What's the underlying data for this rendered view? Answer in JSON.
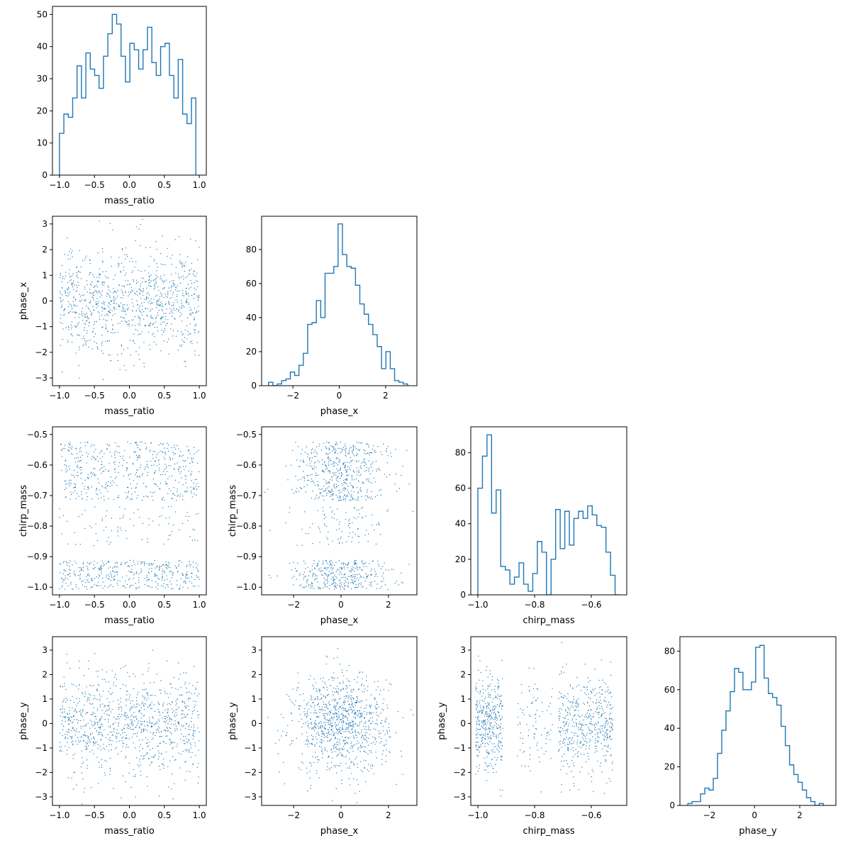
{
  "colors": {
    "series": "#1f77b4",
    "axes": "#000000",
    "background": "#ffffff"
  },
  "chart_data": [
    {
      "panel": "hist-mass_ratio",
      "type": "bar",
      "style": "step-histogram",
      "xlabel": "mass_ratio",
      "ylabel": "",
      "xlim": [
        -1.1,
        1.1
      ],
      "ylim": [
        0,
        52.5
      ],
      "xticks": [
        -1.0,
        -0.5,
        0.0,
        0.5,
        1.0
      ],
      "xtick_labels": [
        "−1.0",
        "−0.5",
        "0.0",
        "0.5",
        "1.0"
      ],
      "yticks": [
        0,
        10,
        20,
        30,
        40,
        50
      ],
      "ytick_labels": [
        "0",
        "10",
        "20",
        "30",
        "40",
        "50"
      ],
      "bin_edges": [
        -1.0,
        0.95
      ],
      "values": [
        13,
        19,
        18,
        24,
        34,
        24,
        38,
        33,
        31,
        27,
        37,
        44,
        50,
        47,
        37,
        29,
        41,
        39,
        33,
        39,
        46,
        35,
        31,
        40,
        41,
        31,
        24,
        36,
        19,
        16,
        24
      ]
    },
    {
      "panel": "hist-phase_x",
      "type": "bar",
      "style": "step-histogram",
      "xlabel": "phase_x",
      "ylabel": "",
      "xlim": [
        -3.35,
        3.35
      ],
      "ylim": [
        0,
        99.5
      ],
      "xticks": [
        -2,
        0,
        2
      ],
      "xtick_labels": [
        "−2",
        "0",
        "2"
      ],
      "yticks": [
        0,
        20,
        40,
        60,
        80
      ],
      "ytick_labels": [
        "0",
        "20",
        "40",
        "60",
        "80"
      ],
      "bin_edges": [
        -3.05,
        2.95
      ],
      "values": [
        2,
        0,
        1,
        3,
        4,
        8,
        6,
        12,
        19,
        36,
        37,
        50,
        40,
        66,
        66,
        70,
        95,
        77,
        70,
        69,
        59,
        48,
        42,
        36,
        30,
        23,
        10,
        20,
        10,
        3,
        2,
        1
      ]
    },
    {
      "panel": "hist-chirp_mass",
      "type": "bar",
      "style": "step-histogram",
      "xlabel": "chirp_mass",
      "ylabel": "",
      "xlim": [
        -1.025,
        -0.475
      ],
      "ylim": [
        0,
        94.5
      ],
      "xticks": [
        -1.0,
        -0.8,
        -0.6
      ],
      "xtick_labels": [
        "−1.0",
        "−0.8",
        "−0.6"
      ],
      "yticks": [
        0,
        20,
        40,
        60,
        80
      ],
      "ytick_labels": [
        "0",
        "20",
        "40",
        "60",
        "80"
      ],
      "bin_edges": [
        -1.0,
        -0.5
      ],
      "values": [
        60,
        78,
        90,
        46,
        59,
        16,
        14,
        6,
        10,
        18,
        6,
        2,
        12,
        30,
        24,
        0,
        20,
        48,
        26,
        47,
        28,
        43,
        47,
        43,
        50,
        45,
        39,
        38,
        24,
        11,
        0
      ]
    },
    {
      "panel": "hist-phase_y",
      "type": "bar",
      "style": "step-histogram",
      "xlabel": "phase_y",
      "ylabel": "",
      "xlim": [
        -3.3,
        3.6
      ],
      "ylim": [
        0,
        87.5
      ],
      "xticks": [
        -2,
        0,
        2
      ],
      "xtick_labels": [
        "−2",
        "0",
        "2"
      ],
      "yticks": [
        0,
        20,
        40,
        60,
        80
      ],
      "ytick_labels": [
        "0",
        "20",
        "40",
        "60",
        "80"
      ],
      "bin_edges": [
        -2.95,
        3.05
      ],
      "values": [
        1,
        2,
        2,
        6,
        9,
        8,
        14,
        27,
        39,
        49,
        59,
        71,
        69,
        60,
        60,
        64,
        82,
        83,
        66,
        58,
        56,
        52,
        41,
        31,
        21,
        16,
        12,
        8,
        4,
        2,
        0,
        1
      ]
    },
    {
      "panel": "scatter-mass_ratio-phase_x",
      "type": "scatter",
      "xlabel": "mass_ratio",
      "ylabel": "phase_x",
      "xlim": [
        -1.1,
        1.1
      ],
      "ylim": [
        -3.3,
        3.3
      ],
      "xticks": [
        -1.0,
        -0.5,
        0.0,
        0.5,
        1.0
      ],
      "xtick_labels": [
        "−1.0",
        "−0.5",
        "0.0",
        "0.5",
        "1.0"
      ],
      "yticks": [
        -3,
        -2,
        -1,
        0,
        1,
        2,
        3
      ],
      "ytick_labels": [
        "−3",
        "−2",
        "−1",
        "0",
        "1",
        "2",
        "3"
      ],
      "x_range": [
        -1.0,
        1.0
      ],
      "x_distribution": "uniform",
      "y_mean": 0.0,
      "y_std": 1.0,
      "n_points": 1000
    },
    {
      "panel": "scatter-mass_ratio-chirp_mass",
      "type": "scatter",
      "xlabel": "mass_ratio",
      "ylabel": "chirp_mass",
      "xlim": [
        -1.1,
        1.1
      ],
      "ylim": [
        -1.025,
        -0.475
      ],
      "xticks": [
        -1.0,
        -0.5,
        0.0,
        0.5,
        1.0
      ],
      "xtick_labels": [
        "−1.0",
        "−0.5",
        "0.0",
        "0.5",
        "1.0"
      ],
      "yticks": [
        -1.0,
        -0.9,
        -0.8,
        -0.7,
        -0.6,
        -0.5
      ],
      "ytick_labels": [
        "−1.0",
        "−0.9",
        "−0.8",
        "−0.7",
        "−0.6",
        "−0.5"
      ],
      "x_range": [
        -1.0,
        1.0
      ],
      "x_distribution": "uniform",
      "y_clusters": [
        {
          "center": -0.96,
          "spread": 0.03,
          "weight": 0.38
        },
        {
          "center": -0.62,
          "spread": 0.06,
          "weight": 0.52
        },
        {
          "center": -0.8,
          "spread": 0.04,
          "weight": 0.1
        }
      ],
      "n_points": 1000
    },
    {
      "panel": "scatter-phase_x-chirp_mass",
      "type": "scatter",
      "xlabel": "phase_x",
      "ylabel": "chirp_mass",
      "xlim": [
        -3.35,
        3.2
      ],
      "ylim": [
        -1.025,
        -0.475
      ],
      "xticks": [
        -2,
        0,
        2
      ],
      "xtick_labels": [
        "−2",
        "0",
        "2"
      ],
      "yticks": [
        -1.0,
        -0.9,
        -0.8,
        -0.7,
        -0.6,
        -0.5
      ],
      "ytick_labels": [
        "−1.0",
        "−0.9",
        "−0.8",
        "−0.7",
        "−0.6",
        "−0.5"
      ],
      "x_mean": 0.0,
      "x_std": 1.0,
      "y_clusters": [
        {
          "center": -0.96,
          "spread": 0.03,
          "weight": 0.38
        },
        {
          "center": -0.62,
          "spread": 0.06,
          "weight": 0.52
        },
        {
          "center": -0.8,
          "spread": 0.04,
          "weight": 0.1
        }
      ],
      "n_points": 1000
    },
    {
      "panel": "scatter-mass_ratio-phase_y",
      "type": "scatter",
      "xlabel": "mass_ratio",
      "ylabel": "phase_y",
      "xlim": [
        -1.1,
        1.1
      ],
      "ylim": [
        -3.35,
        3.55
      ],
      "xticks": [
        -1.0,
        -0.5,
        0.0,
        0.5,
        1.0
      ],
      "xtick_labels": [
        "−1.0",
        "−0.5",
        "0.0",
        "0.5",
        "1.0"
      ],
      "yticks": [
        -3,
        -2,
        -1,
        0,
        1,
        2,
        3
      ],
      "ytick_labels": [
        "−3",
        "−2",
        "−1",
        "0",
        "1",
        "2",
        "3"
      ],
      "x_range": [
        -1.0,
        1.0
      ],
      "x_distribution": "uniform",
      "y_mean": 0.0,
      "y_std": 1.0,
      "n_points": 1000
    },
    {
      "panel": "scatter-phase_x-phase_y",
      "type": "scatter",
      "xlabel": "phase_x",
      "ylabel": "phase_y",
      "xlim": [
        -3.35,
        3.2
      ],
      "ylim": [
        -3.35,
        3.55
      ],
      "xticks": [
        -2,
        0,
        2
      ],
      "xtick_labels": [
        "−2",
        "0",
        "2"
      ],
      "yticks": [
        -3,
        -2,
        -1,
        0,
        1,
        2,
        3
      ],
      "ytick_labels": [
        "−3",
        "−2",
        "−1",
        "0",
        "1",
        "2",
        "3"
      ],
      "x_mean": 0.0,
      "x_std": 1.0,
      "y_mean": 0.0,
      "y_std": 1.0,
      "n_points": 1000
    },
    {
      "panel": "scatter-chirp_mass-phase_y",
      "type": "scatter",
      "xlabel": "chirp_mass",
      "ylabel": "phase_y",
      "xlim": [
        -1.025,
        -0.475
      ],
      "ylim": [
        -3.35,
        3.55
      ],
      "xticks": [
        -1.0,
        -0.8,
        -0.6
      ],
      "xtick_labels": [
        "−1.0",
        "−0.8",
        "−0.6"
      ],
      "yticks": [
        -3,
        -2,
        -1,
        0,
        1,
        2,
        3
      ],
      "ytick_labels": [
        "−3",
        "−2",
        "−1",
        "0",
        "1",
        "2",
        "3"
      ],
      "x_clusters": [
        {
          "center": -0.96,
          "spread": 0.03,
          "weight": 0.38
        },
        {
          "center": -0.62,
          "spread": 0.06,
          "weight": 0.52
        },
        {
          "center": -0.8,
          "spread": 0.04,
          "weight": 0.1
        }
      ],
      "y_mean": 0.0,
      "y_std": 1.0,
      "n_points": 1000
    }
  ]
}
